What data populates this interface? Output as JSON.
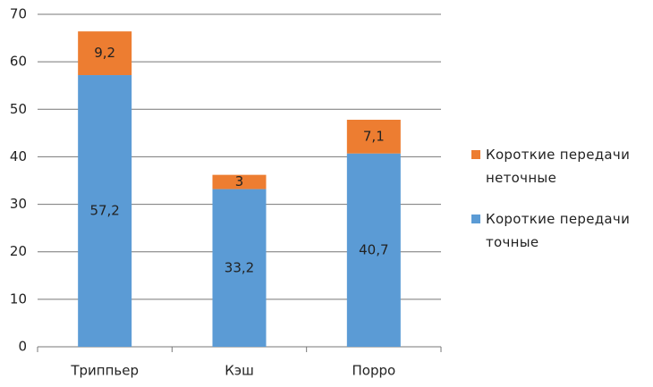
{
  "chart_data": {
    "type": "stacked-bar",
    "categories": [
      "Триппьер",
      "Кэш",
      "Порро"
    ],
    "series": [
      {
        "name": "Короткие передачи точные",
        "color": "#5b9bd5",
        "values": [
          57.2,
          33.2,
          40.7
        ],
        "value_labels": [
          "57,2",
          "33,2",
          "40,7"
        ]
      },
      {
        "name": "Короткие передачи неточные",
        "color": "#ed7d31",
        "values": [
          9.2,
          3,
          7.1
        ],
        "value_labels": [
          "9,2",
          "3",
          "7,1"
        ]
      }
    ],
    "ylim": [
      0,
      70
    ],
    "yticks": [
      0,
      10,
      20,
      30,
      40,
      50,
      60,
      70
    ],
    "grid": true,
    "legend": "right"
  }
}
